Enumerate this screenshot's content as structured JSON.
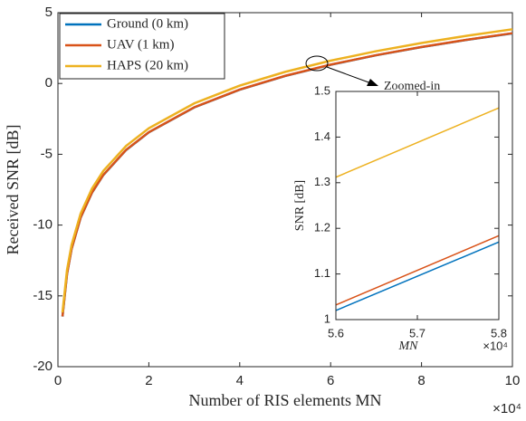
{
  "chart_data": [
    {
      "type": "line",
      "xlabel": "Number of RIS elements MN",
      "ylabel": "Received SNR [dB]",
      "x_exponent": "×10⁴",
      "annotation": "Zoomed-in",
      "x": [
        0.1,
        0.2,
        0.3,
        0.5,
        0.75,
        1,
        1.5,
        2,
        3,
        4,
        5,
        6,
        7,
        8,
        9,
        10
      ],
      "series": [
        {
          "name": "Ground (0 km)",
          "color": "#0072bd",
          "values": [
            -16.46,
            -13.45,
            -11.69,
            -9.47,
            -7.71,
            -6.46,
            -4.7,
            -3.45,
            -1.69,
            -0.44,
            0.53,
            1.32,
            1.99,
            2.57,
            3.08,
            3.54
          ]
        },
        {
          "name": "UAV (1 km)",
          "color": "#d95319",
          "values": [
            -16.45,
            -13.44,
            -11.68,
            -9.46,
            -7.7,
            -6.45,
            -4.69,
            -3.44,
            -1.68,
            -0.43,
            0.54,
            1.33,
            2.0,
            2.58,
            3.09,
            3.55
          ]
        },
        {
          "name": "HAPS (20 km)",
          "color": "#edb120",
          "values": [
            -16.17,
            -13.16,
            -11.4,
            -9.18,
            -7.42,
            -6.17,
            -4.41,
            -3.16,
            -1.4,
            -0.15,
            0.82,
            1.61,
            2.28,
            2.86,
            3.37,
            3.83
          ]
        }
      ],
      "xlim": [
        0,
        10
      ],
      "xticks": [
        0,
        2,
        4,
        6,
        8,
        10
      ],
      "ylim": [
        -20,
        5
      ],
      "yticks": [
        -20,
        -15,
        -10,
        -5,
        0,
        5
      ],
      "legend": "upper left",
      "grid": false
    },
    {
      "type": "line",
      "xlabel": "MN",
      "ylabel": "SNR [dB]",
      "x_exponent": "×10⁴",
      "x": [
        5.6,
        5.8
      ],
      "series": [
        {
          "color": "#0072bd",
          "values": [
            1.02,
            1.17
          ]
        },
        {
          "color": "#d95319",
          "values": [
            1.032,
            1.184
          ]
        },
        {
          "color": "#edb120",
          "values": [
            1.312,
            1.464
          ]
        }
      ],
      "xlim": [
        5.6,
        5.8
      ],
      "xticks": [
        5.6,
        5.7,
        5.8
      ],
      "ylim": [
        1,
        1.5
      ],
      "yticks": [
        1,
        1.1,
        1.2,
        1.3,
        1.4,
        1.5
      ],
      "grid": false
    }
  ]
}
